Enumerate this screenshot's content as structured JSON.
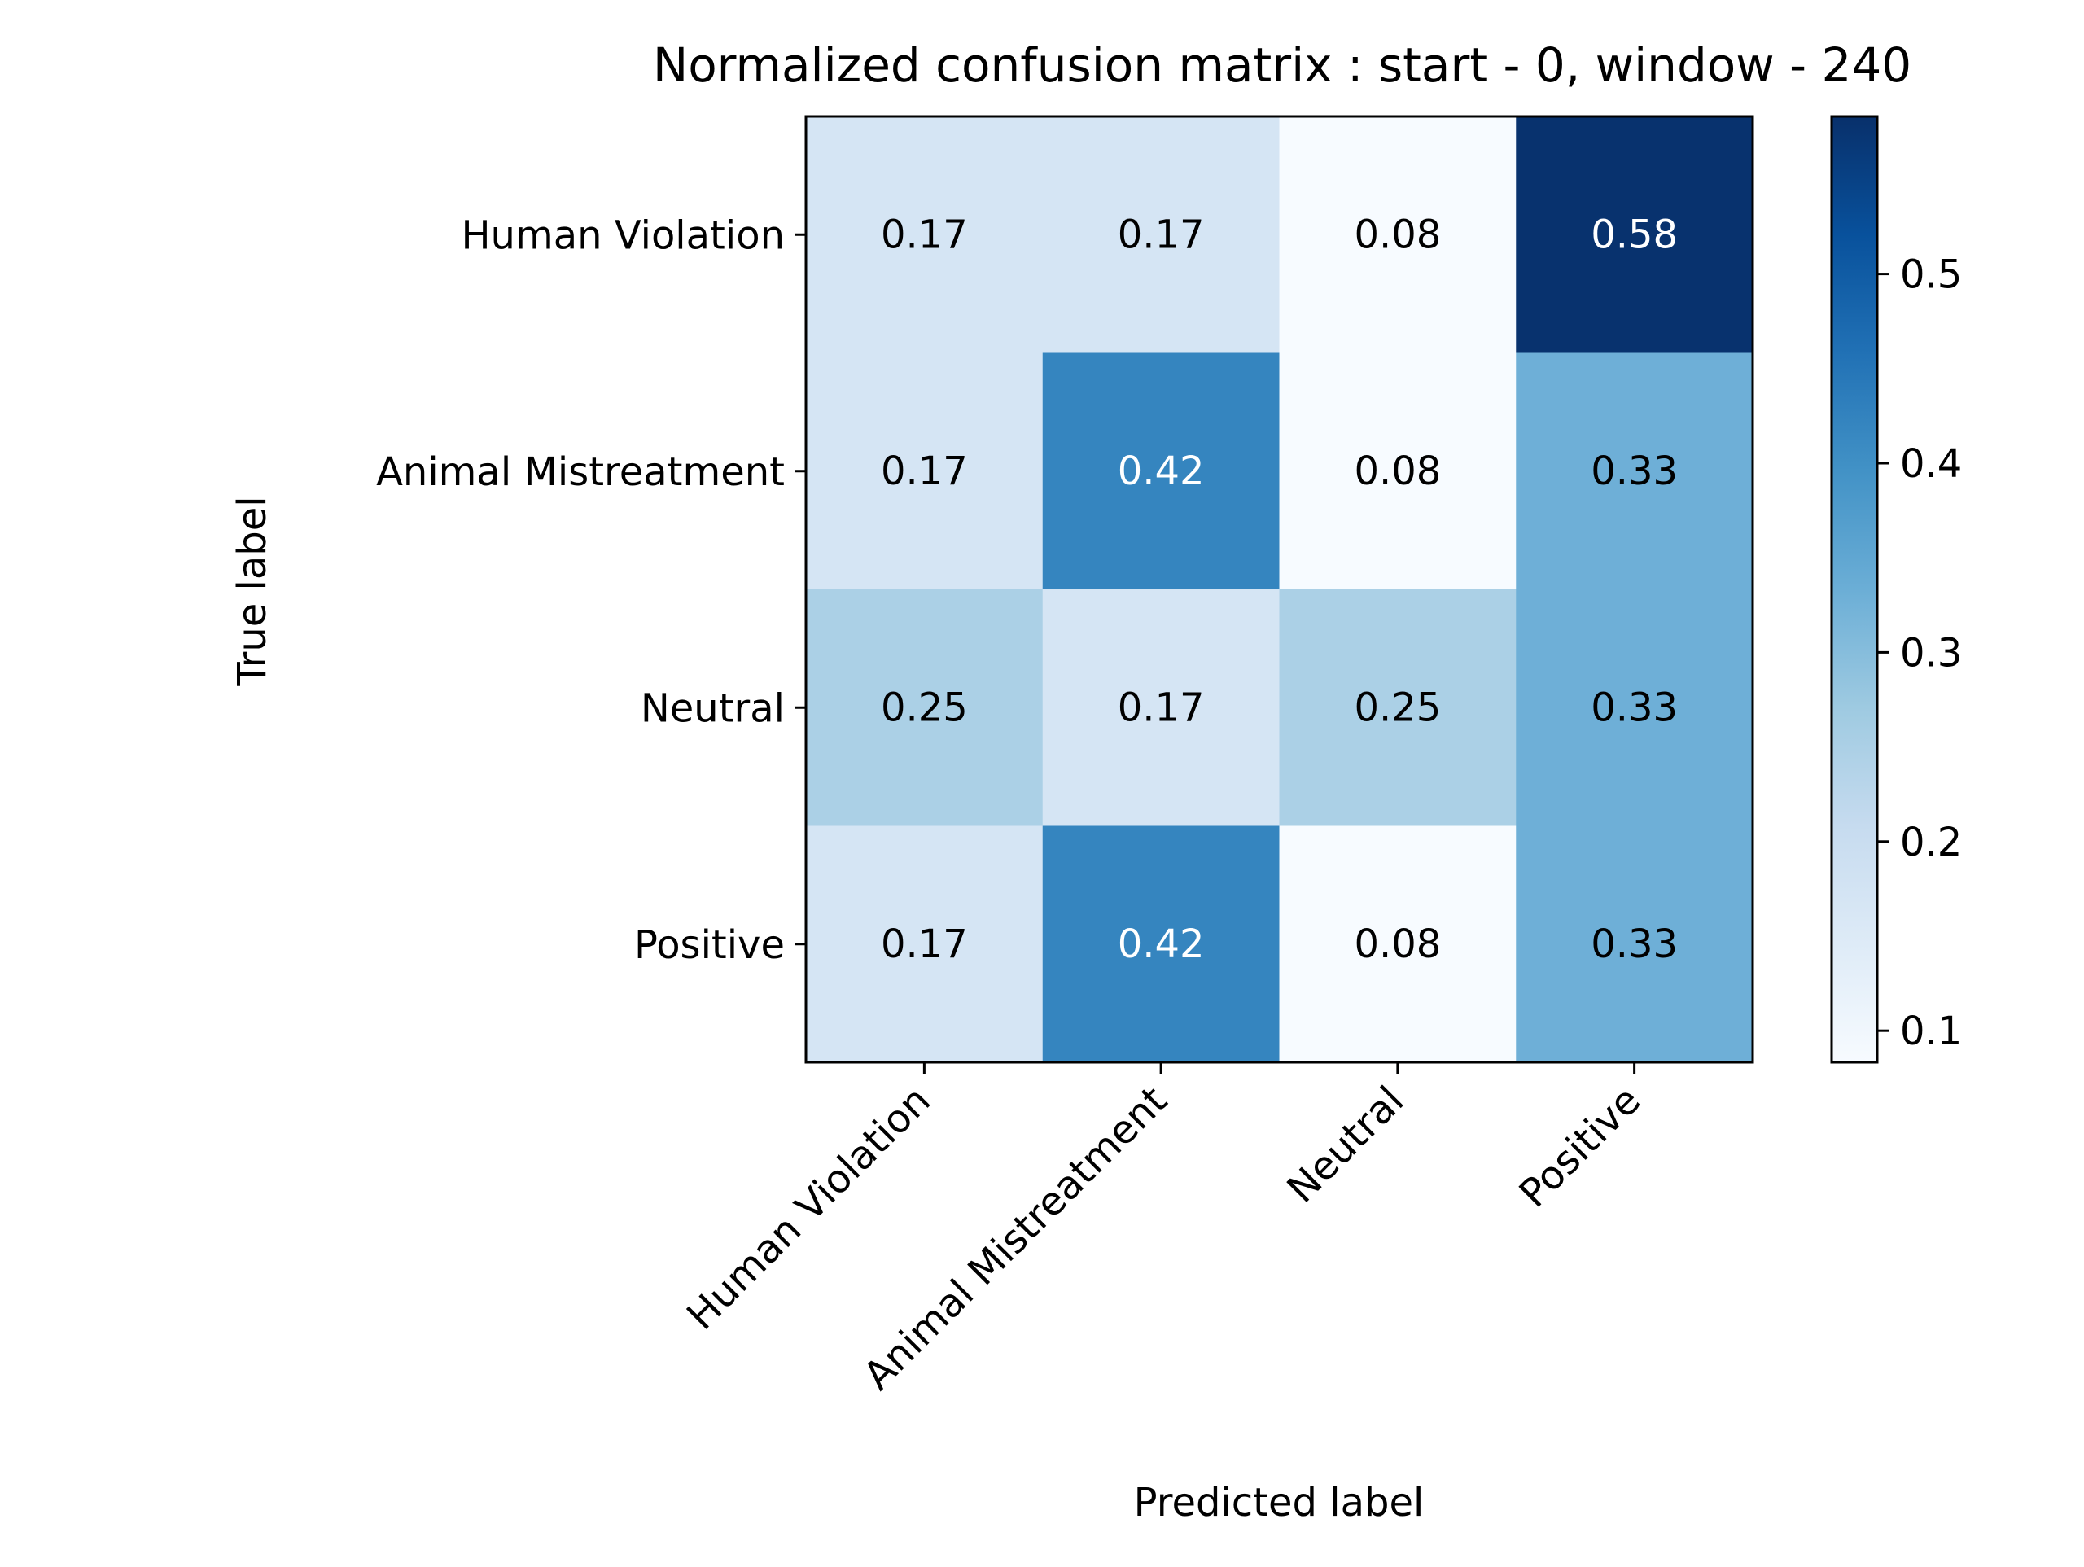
{
  "chart_data": {
    "type": "heatmap",
    "title": "Normalized confusion matrix : start - 0, window - 240",
    "xlabel": "Predicted label",
    "ylabel": "True label",
    "x_categories": [
      "Human Violation",
      "Animal Mistreatment",
      "Neutral",
      "Positive"
    ],
    "y_categories": [
      "Human Violation",
      "Animal Mistreatment",
      "Neutral",
      "Positive"
    ],
    "values": [
      [
        0.17,
        0.17,
        0.08,
        0.58
      ],
      [
        0.17,
        0.42,
        0.08,
        0.33
      ],
      [
        0.25,
        0.17,
        0.25,
        0.33
      ],
      [
        0.17,
        0.42,
        0.08,
        0.33
      ]
    ],
    "value_labels": [
      [
        "0.17",
        "0.17",
        "0.08",
        "0.58"
      ],
      [
        "0.17",
        "0.42",
        "0.08",
        "0.33"
      ],
      [
        "0.25",
        "0.17",
        "0.25",
        "0.33"
      ],
      [
        "0.17",
        "0.42",
        "0.08",
        "0.33"
      ]
    ],
    "colormap": "Blues",
    "color_range": [
      0.0833,
      0.5833
    ],
    "colorbar_ticks": [
      0.1,
      0.2,
      0.3,
      0.4,
      0.5
    ],
    "colorbar_tick_labels": [
      "0.1",
      "0.2",
      "0.3",
      "0.4",
      "0.5"
    ],
    "grid": false,
    "legend": "none"
  }
}
